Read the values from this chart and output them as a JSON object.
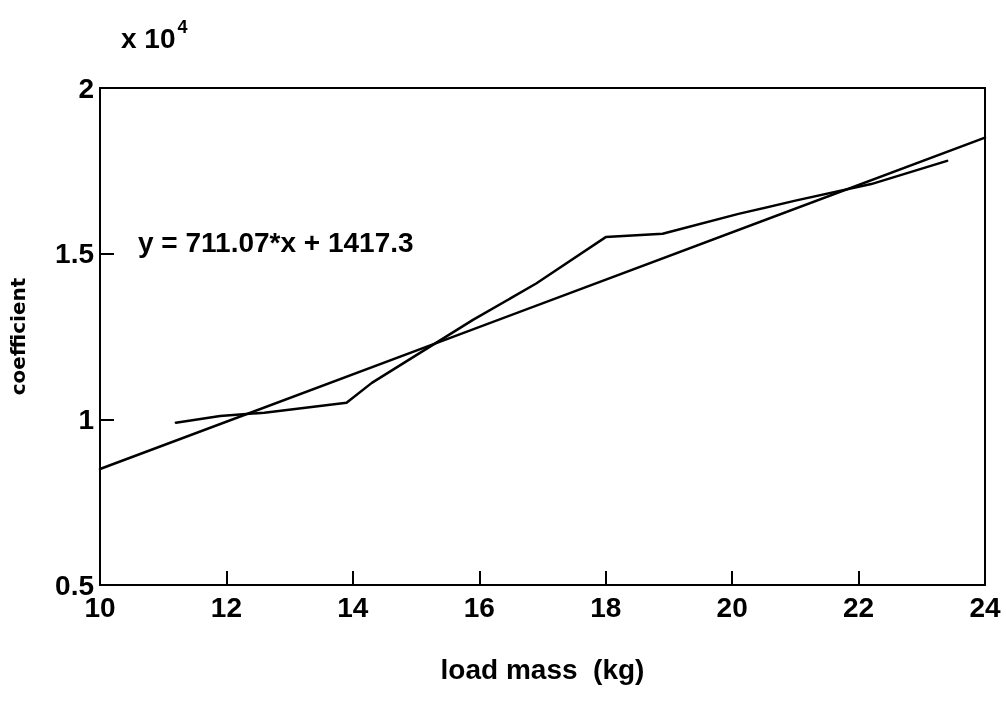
{
  "chart_data": {
    "type": "line",
    "xlabel": "load mass  (kg)",
    "ylabel": "coefficient",
    "annotations": [
      "x 10$^{4}$",
      "y = 711.07*x + 1417.3"
    ],
    "series": [
      {
        "color": "#000000",
        "x": [
          11.2,
          11.9,
          12.6,
          13.9,
          14.3,
          15.9,
          16.9,
          18.0,
          18.9,
          20.1,
          21.0,
          22.2,
          23.4
        ],
        "values": [
          0.99,
          1.01,
          1.02,
          1.05,
          1.11,
          1.3,
          1.41,
          1.55,
          1.56,
          1.62,
          1.66,
          1.71,
          1.78
        ]
      },
      {
        "type": "line",
        "color": "#000000",
        "x": [
          10,
          24
        ],
        "values": [
          0.85,
          1.85
        ]
      }
    ],
    "xlim": [
      10,
      24
    ],
    "xticks": [
      10,
      12,
      14,
      16,
      18,
      20,
      22,
      24
    ],
    "ylim": [
      0.5,
      2
    ],
    "yticks": [
      0.5,
      1,
      1.5,
      2
    ],
    "grid": false,
    "marker": "none",
    "line_style": "solid"
  }
}
